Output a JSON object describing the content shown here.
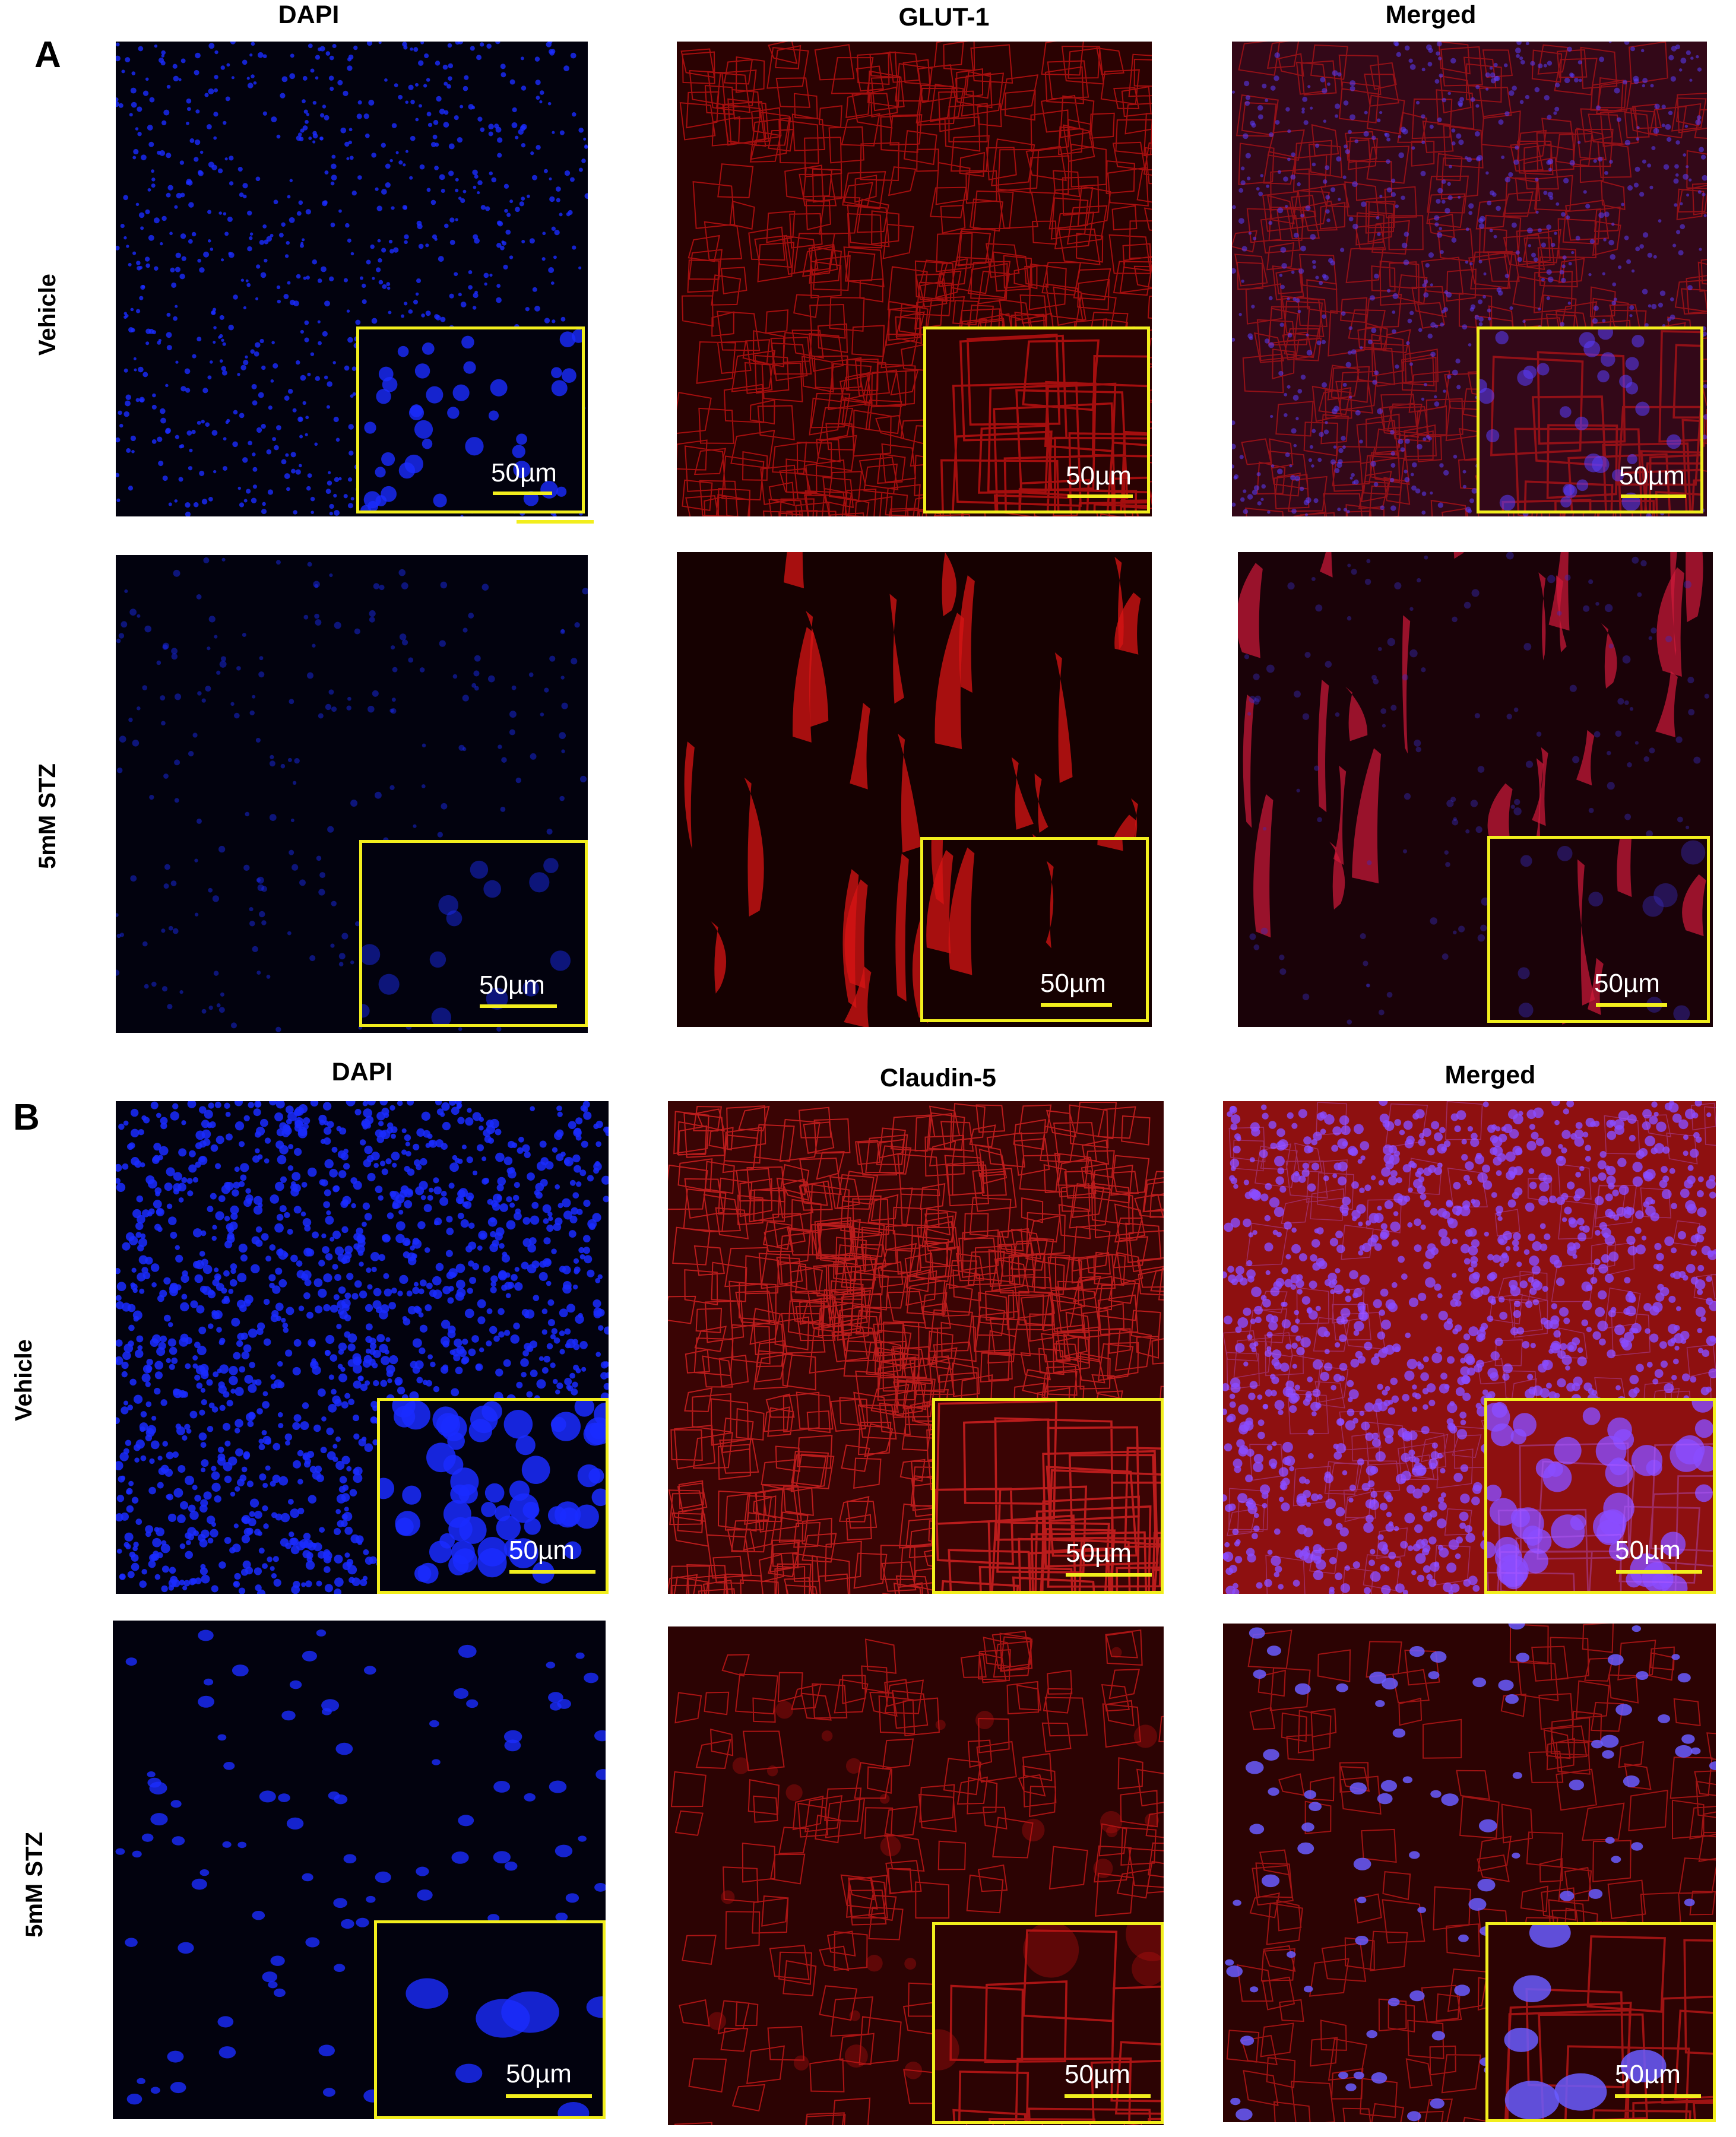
{
  "figure": {
    "panels": [
      {
        "letter": "A",
        "columns": [
          "DAPI",
          "GLUT-1",
          "Merged"
        ],
        "rows": [
          {
            "label": "Vehicle",
            "images": [
              {
                "channel": "blue-nuclei-dense",
                "scale_bar": "50µm"
              },
              {
                "channel": "red-membrane",
                "scale_bar": "50µm"
              },
              {
                "channel": "merged-dense",
                "scale_bar": "50µm"
              }
            ]
          },
          {
            "label": "5mM STZ",
            "images": [
              {
                "channel": "blue-nuclei-sparse",
                "scale_bar": "50µm"
              },
              {
                "channel": "red-streaks",
                "scale_bar": "50µm"
              },
              {
                "channel": "merged-sparse",
                "scale_bar": "50µm"
              }
            ]
          }
        ]
      },
      {
        "letter": "B",
        "columns": [
          "DAPI",
          "Claudin-5",
          "Merged"
        ],
        "rows": [
          {
            "label": "Vehicle",
            "images": [
              {
                "channel": "blue-nuclei-bright",
                "scale_bar": "50µm"
              },
              {
                "channel": "red-mesh",
                "scale_bar": "50µm"
              },
              {
                "channel": "merged-bright",
                "scale_bar": "50µm"
              }
            ]
          },
          {
            "label": "5mM STZ",
            "images": [
              {
                "channel": "blue-nuclei-large",
                "scale_bar": "50µm"
              },
              {
                "channel": "red-cells",
                "scale_bar": "50µm"
              },
              {
                "channel": "merged-cells",
                "scale_bar": "50µm"
              }
            ]
          }
        ]
      }
    ]
  },
  "colors": {
    "inset_border": "#f2ee1d",
    "dapi": "#1a2cff",
    "red_stain": "#d81414",
    "background": "#000000"
  }
}
